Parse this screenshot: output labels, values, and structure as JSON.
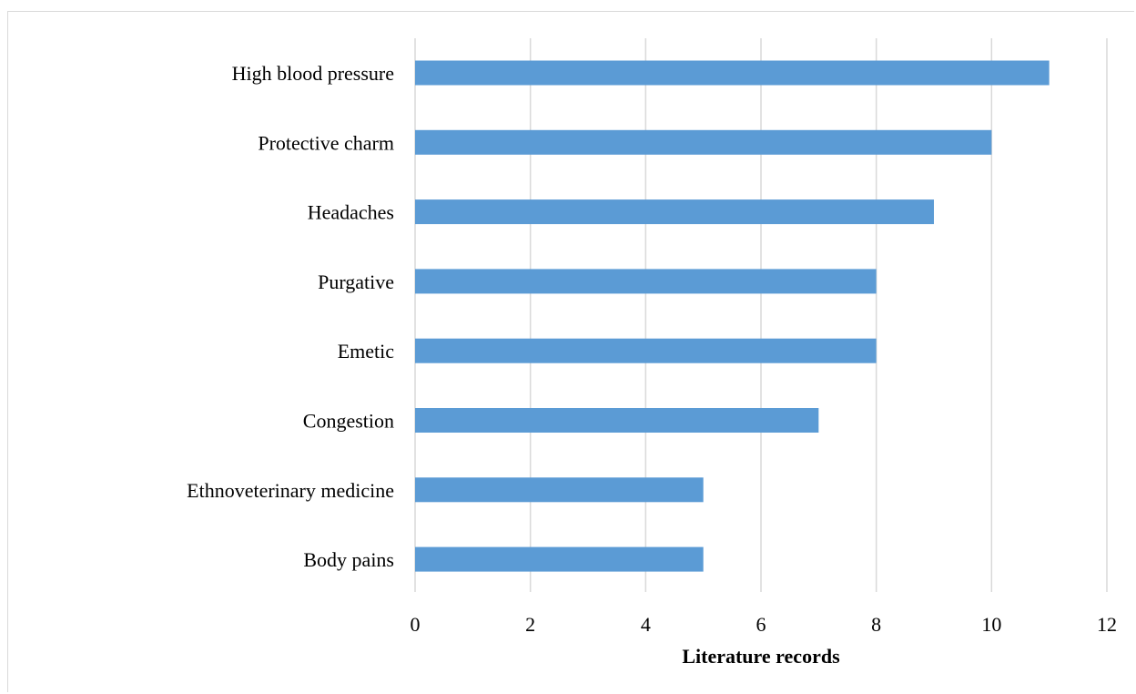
{
  "chart_data": {
    "type": "bar",
    "orientation": "horizontal",
    "categories": [
      "High blood pressure",
      "Protective charm",
      "Headaches",
      "Purgative",
      "Emetic",
      "Congestion",
      "Ethnoveterinary medicine",
      "Body pains"
    ],
    "values": [
      11,
      10,
      9,
      8,
      8,
      7,
      5,
      5
    ],
    "title": "",
    "xlabel": "Literature records",
    "ylabel": "",
    "xlim": [
      0,
      12
    ],
    "xticks": [
      "0",
      "2",
      "4",
      "6",
      "8",
      "10",
      "12"
    ],
    "grid": true,
    "legend": "none",
    "bar_color": "#5b9bd5",
    "grid_color": "#d9d9d9"
  }
}
